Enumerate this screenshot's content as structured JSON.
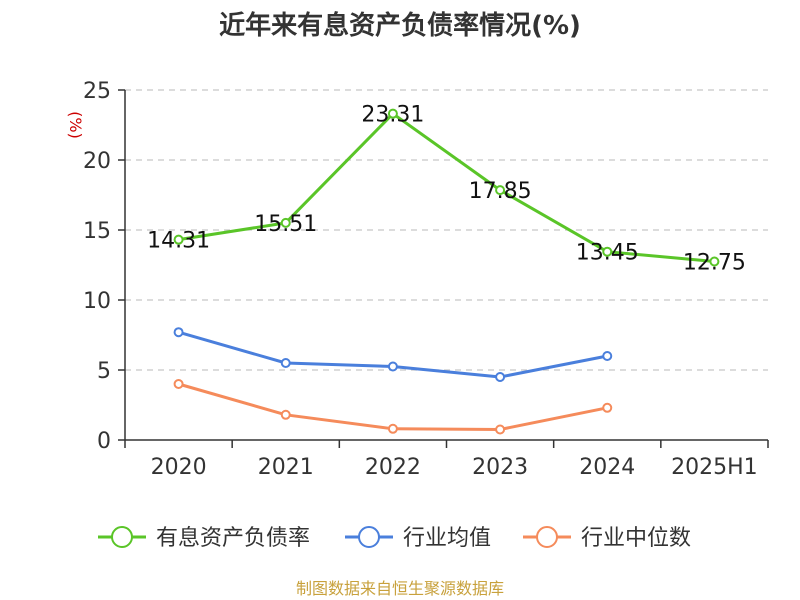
{
  "chart_data": {
    "type": "line",
    "title": "近年来有息资产负债率情况(%)",
    "ylabel": "(%)",
    "categories": [
      "2020",
      "2021",
      "2022",
      "2023",
      "2024",
      "2025H1"
    ],
    "ylim": [
      0,
      25
    ],
    "yticks": [
      "0",
      "5",
      "10",
      "15",
      "20",
      "25"
    ],
    "grid": true,
    "legend_position": "bottom",
    "series": [
      {
        "name": "有息资产负债率",
        "color": "#5ac528",
        "values": [
          14.31,
          15.51,
          23.31,
          17.85,
          13.45,
          12.75
        ],
        "labels": [
          "14.31",
          "15.51",
          "23.31",
          "17.85",
          "13.45",
          "12.75"
        ]
      },
      {
        "name": "行业均值",
        "color": "#4a7fdc",
        "values": [
          7.7,
          5.5,
          5.25,
          4.5,
          6.0,
          null
        ],
        "labels": []
      },
      {
        "name": "行业中位数",
        "color": "#f58b5b",
        "values": [
          4.0,
          1.8,
          0.8,
          0.75,
          2.3,
          null
        ],
        "labels": []
      }
    ],
    "source": "制图数据来自恒生聚源数据库"
  }
}
